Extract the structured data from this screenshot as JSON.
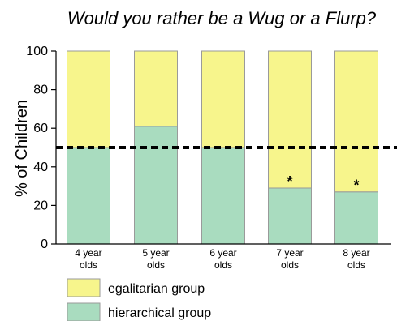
{
  "chart_data": {
    "type": "bar",
    "stacked": true,
    "title": "Would you rather be a Wug or a Flurp?",
    "ylabel": "% of Children",
    "xlabel": "",
    "ylim": [
      0,
      100
    ],
    "yticks": [
      0,
      20,
      40,
      60,
      80,
      100
    ],
    "categories": [
      [
        "4 year",
        "olds"
      ],
      [
        "5 year",
        "olds"
      ],
      [
        "6 year",
        "olds"
      ],
      [
        "7 year",
        "olds"
      ],
      [
        "8 year",
        "olds"
      ]
    ],
    "series": [
      {
        "name": "hierarchical group",
        "color": "#a9dcbf",
        "values": [
          50,
          61,
          50,
          29,
          27
        ]
      },
      {
        "name": "egalitarian group",
        "color": "#f7f58c",
        "values": [
          50,
          39,
          50,
          71,
          73
        ]
      }
    ],
    "reference_line": {
      "value": 50,
      "style": "dashed"
    },
    "significance_markers": [
      "",
      "",
      "",
      "*",
      "*"
    ],
    "legend": {
      "placement": "bottom-left",
      "entries": [
        {
          "label": "egalitarian group",
          "color": "#f7f58c"
        },
        {
          "label": "hierarchical group",
          "color": "#a9dcbf"
        }
      ]
    },
    "grid": false
  }
}
